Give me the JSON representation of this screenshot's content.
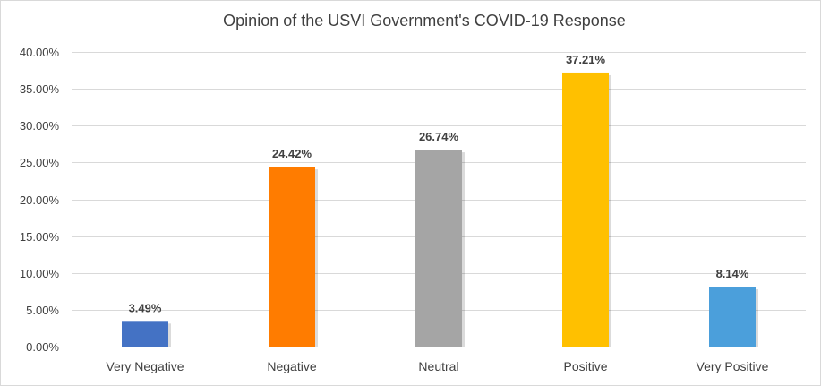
{
  "chart_data": {
    "type": "bar",
    "title": "Opinion of the USVI Government's COVID-19 Response",
    "categories": [
      "Very Negative",
      "Negative",
      "Neutral",
      "Positive",
      "Very Positive"
    ],
    "values": [
      3.49,
      24.42,
      26.74,
      37.21,
      8.14
    ],
    "data_labels": [
      "3.49%",
      "24.42%",
      "26.74%",
      "37.21%",
      "8.14%"
    ],
    "colors": [
      "#4472c4",
      "#ff7c00",
      "#a5a5a5",
      "#ffc000",
      "#4b9fdb"
    ],
    "ylim": [
      0,
      40
    ],
    "yticks": [
      0,
      5,
      10,
      15,
      20,
      25,
      30,
      35,
      40
    ],
    "ytick_labels": [
      "0.00%",
      "5.00%",
      "10.00%",
      "15.00%",
      "20.00%",
      "25.00%",
      "30.00%",
      "35.00%",
      "40.00%"
    ],
    "xlabel": "",
    "ylabel": "",
    "grid": true,
    "legend": "none"
  }
}
